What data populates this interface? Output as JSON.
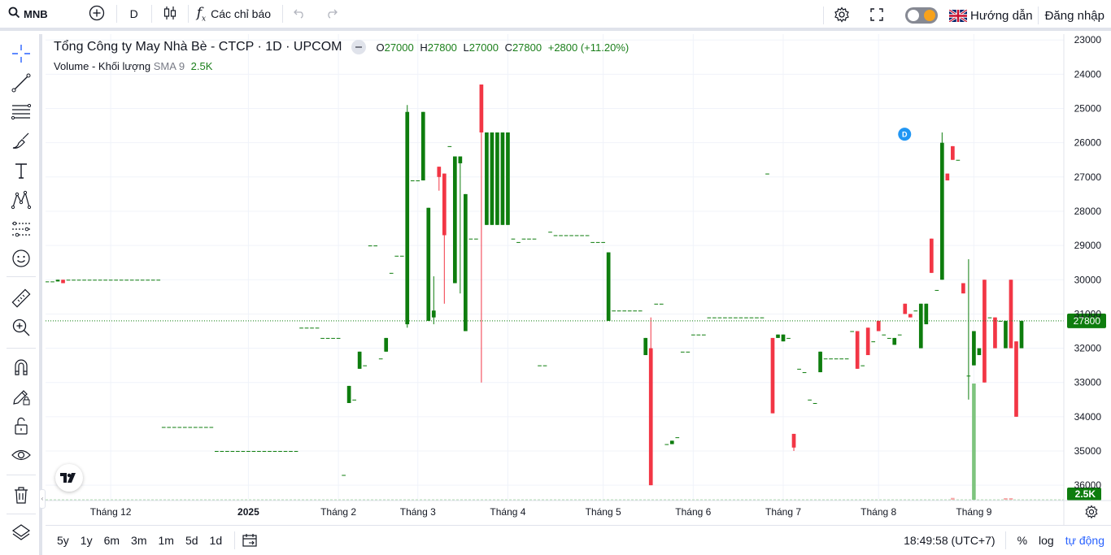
{
  "toolbar": {
    "symbol": "MNB",
    "interval": "D",
    "indicators_label": "Các chỉ báo",
    "guide_label": "Hướng dẫn",
    "login_label": "Đăng nhập"
  },
  "legend": {
    "title": "Tổng Công ty May Nhà Bè - CTCP · 1D · UPCOM",
    "open_key": "O",
    "open": "27000",
    "high_key": "H",
    "high": "27800",
    "low_key": "L",
    "low": "27000",
    "close_key": "C",
    "close": "27800",
    "change": "+2800 (+11.20%)",
    "volume_label": "Volume - Khối lượng",
    "sma_label": "SMA 9",
    "sma_value": "2.5K"
  },
  "price_axis": {
    "ticks": [
      "36000",
      "35000",
      "34000",
      "33000",
      "32000",
      "31000",
      "30000",
      "29000",
      "28000",
      "27000",
      "26000",
      "25000",
      "24000",
      "23000"
    ],
    "last_price_tag": "27800",
    "volume_tag": "2.5K"
  },
  "time_axis": {
    "labels": [
      "Tháng 12",
      "2025",
      "Tháng 2",
      "Tháng 3",
      "Tháng 4",
      "Tháng 5",
      "Tháng 6",
      "Tháng 7",
      "Tháng 8",
      "Tháng 9"
    ]
  },
  "bottom": {
    "ranges": [
      "5y",
      "1y",
      "6m",
      "3m",
      "1m",
      "5d",
      "1d"
    ],
    "clock": "18:49:58 (UTC+7)",
    "percent_label": "%",
    "log_label": "log",
    "auto_label": "tự động"
  },
  "colors": {
    "up": "#0e7d0e",
    "down": "#f23645",
    "grid": "#f0f3fa",
    "accent": "#2962ff"
  },
  "chart_data": {
    "type": "candlestick",
    "title": "Tổng Công ty May Nhà Bè - CTCP · 1D · UPCOM",
    "ylim": [
      22600,
      36100
    ],
    "y_ticks": [
      23000,
      24000,
      25000,
      26000,
      27000,
      28000,
      29000,
      30000,
      31000,
      32000,
      33000,
      34000,
      35000,
      36000
    ],
    "x_labels": [
      "Tháng 12",
      "2025",
      "Tháng 2",
      "Tháng 3",
      "Tháng 4",
      "Tháng 5",
      "Tháng 6",
      "Tháng 7",
      "Tháng 8",
      "Tháng 9"
    ],
    "last_close": 27800,
    "dividend_marker": "D",
    "candles": [
      [
        28950,
        28950,
        28950,
        28950
      ],
      [
        28950,
        28950,
        28950,
        28950
      ],
      [
        28950,
        29000,
        28950,
        29000
      ],
      [
        29000,
        29000,
        28900,
        28900
      ],
      [
        29000,
        29000,
        29000,
        29000
      ],
      [
        29000,
        29000,
        29000,
        29000
      ],
      [
        29000,
        29000,
        29000,
        29000
      ],
      [
        29000,
        29000,
        29000,
        29000
      ],
      [
        29000,
        29000,
        29000,
        29000
      ],
      [
        29000,
        29000,
        29000,
        29000
      ],
      [
        29000,
        29000,
        29000,
        29000
      ],
      [
        29000,
        29000,
        29000,
        29000
      ],
      [
        29000,
        29000,
        29000,
        29000
      ],
      [
        29000,
        29000,
        29000,
        29000
      ],
      [
        29000,
        29000,
        29000,
        29000
      ],
      [
        29000,
        29000,
        29000,
        29000
      ],
      [
        29000,
        29000,
        29000,
        29000
      ],
      [
        29000,
        29000,
        29000,
        29000
      ],
      [
        29000,
        29000,
        29000,
        29000
      ],
      [
        29000,
        29000,
        29000,
        29000
      ],
      [
        29000,
        29000,
        29000,
        29000
      ],
      [
        29000,
        29000,
        29000,
        29000
      ],
      [
        24700,
        24700,
        24700,
        24700
      ],
      [
        24700,
        24700,
        24700,
        24700
      ],
      [
        24700,
        24700,
        24700,
        24700
      ],
      [
        24700,
        24700,
        24700,
        24700
      ],
      [
        24700,
        24700,
        24700,
        24700
      ],
      [
        24700,
        24700,
        24700,
        24700
      ],
      [
        24700,
        24700,
        24700,
        24700
      ],
      [
        24700,
        24700,
        24700,
        24700
      ],
      [
        24700,
        24700,
        24700,
        24700
      ],
      [
        24700,
        24700,
        24700,
        24700
      ],
      [
        24000,
        24000,
        24000,
        24000
      ],
      [
        24000,
        24000,
        24000,
        24000
      ],
      [
        24000,
        24000,
        24000,
        24000
      ],
      [
        24000,
        24000,
        24000,
        24000
      ],
      [
        24000,
        24000,
        24000,
        24000
      ],
      [
        24000,
        24000,
        24000,
        24000
      ],
      [
        24000,
        24000,
        24000,
        24000
      ],
      [
        24000,
        24000,
        24000,
        24000
      ],
      [
        24000,
        24000,
        24000,
        24000
      ],
      [
        24000,
        24000,
        24000,
        24000
      ],
      [
        24000,
        24000,
        24000,
        24000
      ],
      [
        24000,
        24000,
        24000,
        24000
      ],
      [
        24000,
        24000,
        24000,
        24000
      ],
      [
        24000,
        24000,
        24000,
        24000
      ],
      [
        24000,
        24000,
        24000,
        24000
      ],
      [
        24000,
        24000,
        24000,
        24000
      ],
      [
        27600,
        27600,
        27600,
        27600
      ],
      [
        27600,
        27600,
        27600,
        27600
      ],
      [
        27600,
        27600,
        27600,
        27600
      ],
      [
        27600,
        27600,
        27600,
        27600
      ],
      [
        27300,
        27300,
        27300,
        27300
      ],
      [
        27300,
        27300,
        27300,
        27300
      ],
      [
        27300,
        27300,
        27300,
        27300
      ],
      [
        27300,
        27300,
        27300,
        27300
      ],
      [
        23300,
        23300,
        23300,
        23300
      ],
      [
        25400,
        25900,
        25400,
        25900
      ],
      [
        25500,
        25500,
        25500,
        25500
      ],
      [
        26400,
        26900,
        26400,
        26900
      ],
      [
        26500,
        26500,
        26500,
        26500
      ],
      [
        30000,
        30000,
        30000,
        30000
      ],
      [
        30000,
        30000,
        30000,
        30000
      ],
      [
        26700,
        26700,
        26700,
        26700
      ],
      [
        26900,
        27300,
        26900,
        27300
      ],
      [
        29200,
        29200,
        29200,
        29200
      ],
      [
        29700,
        29700,
        29700,
        29700
      ],
      [
        29700,
        29700,
        29700,
        29700
      ],
      [
        27700,
        34100,
        27600,
        33900
      ],
      [
        31900,
        31900,
        31900,
        31900
      ],
      [
        31900,
        31900,
        31900,
        31900
      ],
      [
        31900,
        33900,
        31900,
        33900
      ],
      [
        27800,
        31100,
        27800,
        31100
      ],
      [
        27900,
        29100,
        27700,
        28100
      ],
      [
        32300,
        32300,
        31600,
        32000
      ],
      [
        32100,
        32100,
        28300,
        30300
      ],
      [
        32900,
        32900,
        32900,
        32900
      ],
      [
        28900,
        32600,
        28900,
        32600
      ],
      [
        32400,
        32600,
        28600,
        32600
      ],
      [
        27500,
        31500,
        27500,
        31500
      ],
      [
        30200,
        30200,
        30200,
        30200
      ],
      [
        30200,
        30200,
        30200,
        30200
      ],
      [
        34700,
        34700,
        26000,
        33300
      ],
      [
        30600,
        33300,
        30600,
        33300
      ],
      [
        30600,
        33300,
        30600,
        33300
      ],
      [
        30600,
        33300,
        30600,
        33300
      ],
      [
        30600,
        33300,
        30600,
        33300
      ],
      [
        30600,
        33300,
        30600,
        33300
      ],
      [
        30200,
        30200,
        30200,
        30200
      ],
      [
        30100,
        30100,
        30100,
        30100
      ],
      [
        30200,
        30200,
        30200,
        30200
      ],
      [
        30200,
        30200,
        30200,
        30200
      ],
      [
        30200,
        30200,
        30200,
        30200
      ],
      [
        26500,
        26500,
        26500,
        26500
      ],
      [
        26500,
        26500,
        26500,
        26500
      ],
      [
        30400,
        30400,
        30400,
        30400
      ],
      [
        30300,
        30300,
        30300,
        30300
      ],
      [
        30300,
        30300,
        30300,
        30300
      ],
      [
        30300,
        30300,
        30300,
        30300
      ],
      [
        30300,
        30300,
        30300,
        30300
      ],
      [
        30300,
        30300,
        30300,
        30300
      ],
      [
        30300,
        30300,
        30300,
        30300
      ],
      [
        30300,
        30300,
        30300,
        30300
      ],
      [
        30100,
        30100,
        30100,
        30100
      ],
      [
        30100,
        30100,
        30100,
        30100
      ],
      [
        30100,
        30100,
        30100,
        30100
      ],
      [
        27800,
        29800,
        27800,
        29800
      ],
      [
        28100,
        28100,
        28100,
        28100
      ],
      [
        28100,
        28100,
        28100,
        28100
      ],
      [
        28100,
        28100,
        28100,
        28100
      ],
      [
        28100,
        28100,
        28100,
        28100
      ],
      [
        28100,
        28100,
        28100,
        28100
      ],
      [
        28100,
        28100,
        28100,
        28100
      ],
      [
        26800,
        27300,
        26800,
        27300
      ],
      [
        27000,
        27900,
        23000,
        23000
      ],
      [
        28300,
        28300,
        28300,
        28300
      ],
      [
        28300,
        28300,
        28300,
        28300
      ],
      [
        24200,
        24200,
        24200,
        24200
      ],
      [
        24200,
        24300,
        24200,
        24300
      ],
      [
        24400,
        24400,
        24400,
        24400
      ],
      [
        26900,
        26900,
        26900,
        26900
      ],
      [
        26900,
        26900,
        26900,
        26900
      ],
      [
        27400,
        27400,
        27400,
        27400
      ],
      [
        27400,
        27400,
        27400,
        27400
      ],
      [
        27400,
        27400,
        27400,
        27400
      ],
      [
        27900,
        27900,
        27900,
        27900
      ],
      [
        27900,
        27900,
        27900,
        27900
      ],
      [
        27900,
        27900,
        27900,
        27900
      ],
      [
        27900,
        27900,
        27900,
        27900
      ],
      [
        27900,
        27900,
        27900,
        27900
      ],
      [
        27900,
        27900,
        27900,
        27900
      ],
      [
        27900,
        27900,
        27900,
        27900
      ],
      [
        27900,
        27900,
        27900,
        27900
      ],
      [
        27900,
        27900,
        27900,
        27900
      ],
      [
        27900,
        27900,
        27900,
        27900
      ],
      [
        27900,
        27900,
        27900,
        27900
      ],
      [
        32100,
        32100,
        32100,
        32100
      ],
      [
        27300,
        27300,
        25100,
        25100
      ],
      [
        27300,
        27400,
        27300,
        27400
      ],
      [
        27200,
        27400,
        27200,
        27400
      ],
      [
        27300,
        27300,
        27300,
        27300
      ],
      [
        24500,
        24500,
        24000,
        24100
      ],
      [
        26400,
        26400,
        26400,
        26400
      ],
      [
        26300,
        26300,
        26300,
        26300
      ],
      [
        25500,
        25500,
        25500,
        25500
      ],
      [
        25400,
        25400,
        25400,
        25400
      ],
      [
        26300,
        26900,
        26300,
        26900
      ],
      [
        26700,
        26700,
        26700,
        26700
      ],
      [
        26700,
        26700,
        26700,
        26700
      ],
      [
        26700,
        26700,
        26700,
        26700
      ],
      [
        26700,
        26700,
        26700,
        26700
      ],
      [
        26700,
        26700,
        26700,
        26700
      ],
      [
        27500,
        27500,
        27500,
        27500
      ],
      [
        27500,
        27500,
        26400,
        26400
      ],
      [
        26500,
        26500,
        26500,
        26500
      ],
      [
        27600,
        27600,
        26800,
        26800
      ],
      [
        27200,
        27200,
        27200,
        27200
      ],
      [
        27800,
        27800,
        27500,
        27500
      ],
      [
        27400,
        27400,
        27400,
        27400
      ],
      [
        27300,
        27300,
        27300,
        27300
      ],
      [
        27100,
        27300,
        27100,
        27300
      ],
      [
        27400,
        27400,
        27400,
        27400
      ],
      [
        28300,
        28300,
        28000,
        28000
      ],
      [
        28000,
        28000,
        27900,
        27900
      ],
      [
        28100,
        28100,
        28100,
        28100
      ],
      [
        27000,
        28300,
        27000,
        28300
      ],
      [
        27700,
        28300,
        27700,
        28300
      ],
      [
        30200,
        30200,
        29200,
        29200
      ],
      [
        28700,
        28700,
        28700,
        28700
      ],
      [
        29000,
        33300,
        29000,
        33000
      ],
      [
        32100,
        32100,
        31900,
        31900
      ],
      [
        32900,
        32900,
        32500,
        32500
      ],
      [
        32500,
        32500,
        32500,
        32500
      ],
      [
        28900,
        28900,
        28600,
        28600
      ],
      [
        26200,
        29600,
        25500,
        26200
      ],
      [
        26500,
        27500,
        26500,
        27500
      ],
      [
        26800,
        27000,
        26800,
        27000
      ],
      [
        29000,
        29000,
        26000,
        26000
      ],
      [
        27900,
        27900,
        27900,
        27900
      ],
      [
        27900,
        27900,
        27000,
        27000
      ],
      [
        27800,
        27800,
        27800,
        27800
      ],
      [
        27000,
        27800,
        27000,
        27800
      ],
      [
        29000,
        29000,
        27000,
        27000
      ],
      [
        27200,
        27200,
        25000,
        25000
      ],
      [
        27000,
        27800,
        27000,
        27800
      ]
    ],
    "volume": {
      "label": "Volume - Khối lượng",
      "sma_label": "SMA 9",
      "sma_value": 2500,
      "notable_bars": [
        {
          "index": 171,
          "value": 200,
          "dir": "down"
        },
        {
          "index": 175,
          "value": 12300,
          "dir": "up"
        },
        {
          "index": 181,
          "value": 100,
          "dir": "down"
        },
        {
          "index": 182,
          "value": 100,
          "dir": "down"
        }
      ]
    }
  }
}
